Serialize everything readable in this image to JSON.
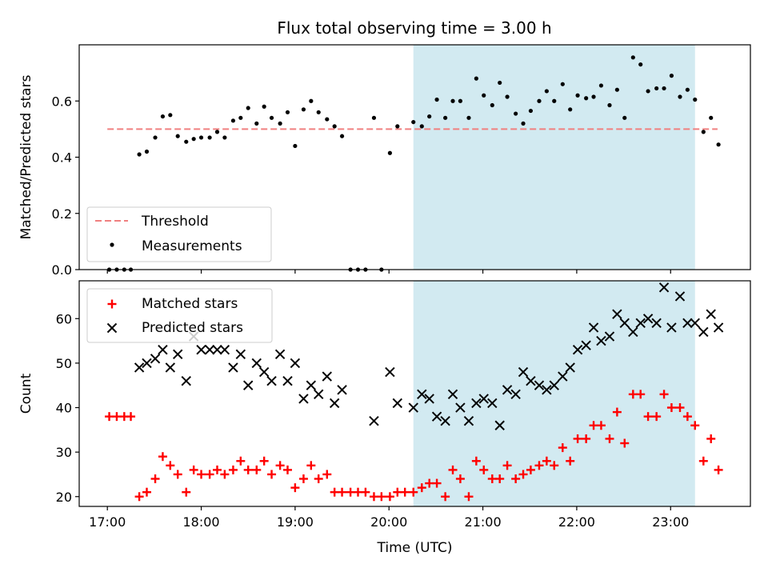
{
  "chart_data": {
    "type": "scatter",
    "title": "Flux total observing time = 3.00 h",
    "xlabel": "Time (UTC)",
    "x_ticks": [
      "17:00",
      "18:00",
      "19:00",
      "20:00",
      "21:00",
      "22:00",
      "23:00"
    ],
    "xlim_hours": [
      16.7,
      23.85
    ],
    "shaded_interval_hours": [
      20.26,
      23.26
    ],
    "shade_color": "#add8e6",
    "panels": [
      {
        "ylabel": "Matched/Predicted stars",
        "ylim": [
          0,
          0.8
        ],
        "y_ticks": [
          0.0,
          0.2,
          0.4,
          0.6
        ],
        "legend_position": "lower-left",
        "threshold": {
          "name": "Threshold",
          "value": 0.5,
          "x_range": [
            17.0,
            23.5
          ],
          "color": "#f08080"
        },
        "series": [
          {
            "name": "Measurements",
            "marker": "dot",
            "color": "#000000",
            "x": [
              17.02,
              17.1,
              17.18,
              17.25,
              17.34,
              17.42,
              17.51,
              17.59,
              17.67,
              17.75,
              17.84,
              17.92,
              18.0,
              18.09,
              18.17,
              18.25,
              18.34,
              18.42,
              18.5,
              18.59,
              18.67,
              18.75,
              18.84,
              18.92,
              19.0,
              19.09,
              19.17,
              19.25,
              19.34,
              19.42,
              19.5,
              19.59,
              19.67,
              19.75,
              19.84,
              19.92,
              20.01,
              20.09,
              20.26,
              20.35,
              20.43,
              20.51,
              20.6,
              20.68,
              20.76,
              20.85,
              20.93,
              21.01,
              21.1,
              21.18,
              21.26,
              21.35,
              21.43,
              21.51,
              21.6,
              21.68,
              21.76,
              21.85,
              21.93,
              22.01,
              22.1,
              22.18,
              22.26,
              22.35,
              22.43,
              22.51,
              22.6,
              22.68,
              22.76,
              22.85,
              22.93,
              23.01,
              23.1,
              23.18,
              23.26,
              23.35,
              23.43,
              23.51
            ],
            "y": [
              0,
              0,
              0,
              0,
              0.41,
              0.42,
              0.47,
              0.545,
              0.55,
              0.475,
              0.455,
              0.465,
              0.47,
              0.47,
              0.49,
              0.47,
              0.53,
              0.54,
              0.575,
              0.52,
              0.58,
              0.54,
              0.52,
              0.56,
              0.44,
              0.57,
              0.6,
              0.56,
              0.535,
              0.51,
              0.475,
              0,
              0,
              0,
              0.54,
              0,
              0.415,
              0.51,
              0.525,
              0.51,
              0.545,
              0.605,
              0.54,
              0.6,
              0.6,
              0.54,
              0.68,
              0.62,
              0.585,
              0.665,
              0.615,
              0.555,
              0.52,
              0.565,
              0.6,
              0.635,
              0.6,
              0.66,
              0.57,
              0.62,
              0.61,
              0.615,
              0.655,
              0.585,
              0.64,
              0.54,
              0.755,
              0.73,
              0.635,
              0.645,
              0.645,
              0.69,
              0.615,
              0.64,
              0.605,
              0.49,
              0.54,
              0.445
            ]
          }
        ]
      },
      {
        "ylabel": "Count",
        "ylim": [
          17.8,
          68.5
        ],
        "y_ticks": [
          20,
          30,
          40,
          50,
          60
        ],
        "legend_position": "upper-left",
        "series": [
          {
            "name": "Matched stars",
            "marker": "plus",
            "color": "#ff0000",
            "x": [
              17.02,
              17.1,
              17.18,
              17.25,
              17.34,
              17.42,
              17.51,
              17.59,
              17.67,
              17.75,
              17.84,
              17.92,
              18.0,
              18.09,
              18.17,
              18.25,
              18.34,
              18.42,
              18.5,
              18.59,
              18.67,
              18.75,
              18.84,
              18.92,
              19.0,
              19.09,
              19.17,
              19.25,
              19.34,
              19.42,
              19.5,
              19.59,
              19.67,
              19.75,
              19.84,
              19.92,
              20.01,
              20.09,
              20.17,
              20.26,
              20.35,
              20.43,
              20.51,
              20.6,
              20.68,
              20.76,
              20.85,
              20.93,
              21.01,
              21.1,
              21.18,
              21.26,
              21.35,
              21.43,
              21.51,
              21.6,
              21.68,
              21.76,
              21.85,
              21.93,
              22.01,
              22.1,
              22.18,
              22.26,
              22.35,
              22.43,
              22.51,
              22.6,
              22.68,
              22.76,
              22.85,
              22.93,
              23.01,
              23.1,
              23.18,
              23.26,
              23.35,
              23.43,
              23.51
            ],
            "y": [
              38,
              38,
              38,
              38,
              20,
              21,
              24,
              29,
              27,
              25,
              21,
              26,
              25,
              25,
              26,
              25,
              26,
              28,
              26,
              26,
              28,
              25,
              27,
              26,
              22,
              24,
              27,
              24,
              25,
              21,
              21,
              21,
              21,
              21,
              20,
              20,
              20,
              21,
              21,
              21,
              22,
              23,
              23,
              20,
              26,
              24,
              20,
              28,
              26,
              24,
              24,
              27,
              24,
              25,
              26,
              27,
              28,
              27,
              31,
              28,
              33,
              33,
              36,
              36,
              33,
              39,
              32,
              43,
              43,
              38,
              38,
              43,
              40,
              40,
              38,
              36,
              28,
              33,
              26
            ]
          },
          {
            "name": "Predicted stars",
            "marker": "x",
            "color": "#000000",
            "x": [
              17.34,
              17.42,
              17.51,
              17.59,
              17.67,
              17.75,
              17.84,
              17.92,
              18.0,
              18.09,
              18.17,
              18.25,
              18.34,
              18.42,
              18.5,
              18.59,
              18.67,
              18.75,
              18.84,
              18.92,
              19.0,
              19.09,
              19.17,
              19.25,
              19.34,
              19.42,
              19.5,
              19.84,
              20.01,
              20.09,
              20.26,
              20.35,
              20.43,
              20.51,
              20.6,
              20.68,
              20.76,
              20.85,
              20.93,
              21.01,
              21.1,
              21.18,
              21.26,
              21.35,
              21.43,
              21.51,
              21.6,
              21.68,
              21.76,
              21.85,
              21.93,
              22.01,
              22.1,
              22.18,
              22.26,
              22.35,
              22.43,
              22.51,
              22.6,
              22.68,
              22.76,
              22.85,
              22.93,
              23.01,
              23.1,
              23.18,
              23.26,
              23.35,
              23.43,
              23.51
            ],
            "y": [
              49,
              50,
              51,
              53,
              49,
              52,
              46,
              56,
              53,
              53,
              53,
              53,
              49,
              52,
              45,
              50,
              48,
              46,
              52,
              46,
              50,
              42,
              45,
              43,
              47,
              41,
              44,
              37,
              48,
              41,
              40,
              43,
              42,
              38,
              37,
              43,
              40,
              37,
              41,
              42,
              41,
              36,
              44,
              43,
              48,
              46,
              45,
              44,
              45,
              47,
              49,
              53,
              54,
              58,
              55,
              56,
              61,
              59,
              57,
              59,
              60,
              59,
              67,
              58,
              65,
              59,
              59,
              57,
              61,
              58
            ]
          }
        ]
      }
    ]
  }
}
